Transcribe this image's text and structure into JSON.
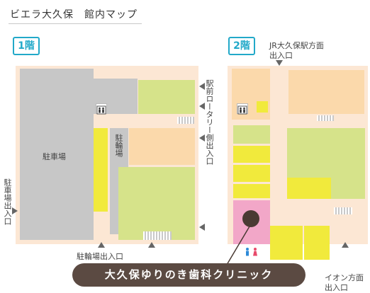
{
  "title": "ビエラ大久保　館内マップ",
  "floors": {
    "f1": {
      "badge": "1階",
      "parking_label": "駐車場",
      "bicycle_label": "駐輪場",
      "right_entrance": "駅前ロータリー側出入口",
      "left_entrance": "駐車場出入口",
      "bottom_entrance": "駐輪場出入口"
    },
    "f2": {
      "badge": "2階",
      "top_entrance_line1": "JR大久保駅方面",
      "top_entrance_line2": "出入口",
      "bottom_entrance_line1": "イオン方面",
      "bottom_entrance_line2": "出入口"
    }
  },
  "clinic": {
    "name": "大久保ゆりのき歯科クリニック"
  },
  "colors": {
    "corridor": "#fce7d4",
    "parking": "#c7c7c7",
    "store_green": "#d6e38a",
    "store_yellow": "#f1ea3c",
    "store_peach": "#fbd9ab",
    "clinic_pink": "#f2a7c8",
    "accent": "#22a9c9",
    "clinic_label_bg": "#5b4a42"
  },
  "icons": [
    "elevator-icon",
    "restroom-icon",
    "arrow-icon",
    "clinic-marker-icon"
  ]
}
